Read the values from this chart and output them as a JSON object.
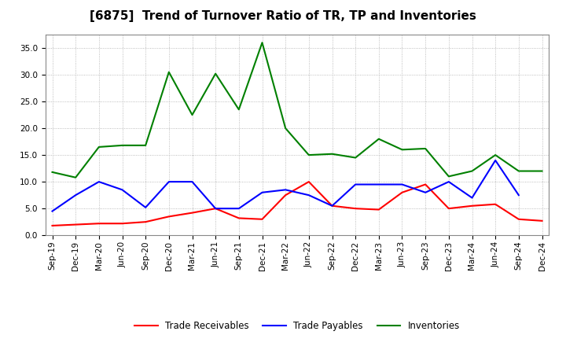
{
  "title": "[6875]  Trend of Turnover Ratio of TR, TP and Inventories",
  "x_labels": [
    "Sep-19",
    "Dec-19",
    "Mar-20",
    "Jun-20",
    "Sep-20",
    "Dec-20",
    "Mar-21",
    "Jun-21",
    "Sep-21",
    "Dec-21",
    "Mar-22",
    "Jun-22",
    "Sep-22",
    "Dec-22",
    "Mar-23",
    "Jun-23",
    "Sep-23",
    "Dec-23",
    "Mar-24",
    "Jun-24",
    "Sep-24",
    "Dec-24"
  ],
  "trade_receivables": [
    1.8,
    2.0,
    2.2,
    2.2,
    2.5,
    3.5,
    4.2,
    5.0,
    3.2,
    3.0,
    7.5,
    10.0,
    5.5,
    5.0,
    4.8,
    8.0,
    9.5,
    5.0,
    5.5,
    5.8,
    3.0,
    2.7
  ],
  "trade_payables": [
    4.5,
    7.5,
    10.0,
    8.5,
    5.2,
    10.0,
    10.0,
    5.0,
    5.0,
    8.0,
    8.5,
    7.5,
    5.5,
    9.5,
    9.5,
    9.5,
    8.0,
    10.0,
    7.0,
    14.0,
    7.5,
    null
  ],
  "inventories": [
    11.8,
    10.8,
    16.5,
    16.8,
    16.8,
    30.5,
    22.5,
    30.2,
    23.5,
    36.0,
    20.0,
    15.0,
    15.2,
    14.5,
    18.0,
    16.0,
    16.2,
    11.0,
    12.0,
    15.0,
    12.0,
    12.0
  ],
  "ylim": [
    0.0,
    37.5
  ],
  "yticks": [
    0.0,
    5.0,
    10.0,
    15.0,
    20.0,
    25.0,
    30.0,
    35.0
  ],
  "tr_color": "#ff0000",
  "tp_color": "#0000ff",
  "inv_color": "#008000",
  "background_color": "#ffffff",
  "grid_color": "#aaaaaa",
  "title_fontsize": 11,
  "tick_fontsize": 7.5,
  "legend_fontsize": 8.5
}
